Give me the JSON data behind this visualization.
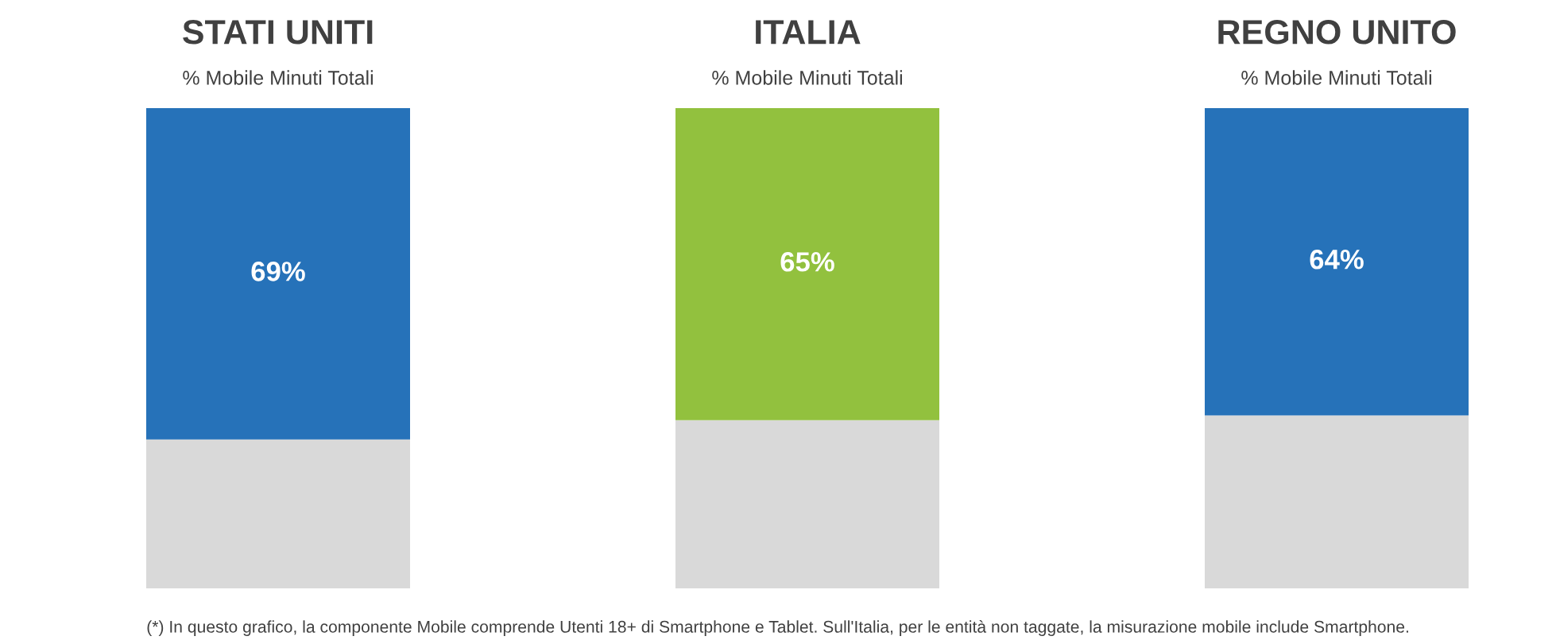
{
  "chart_data": [
    {
      "type": "bar",
      "title": "STATI UNITI",
      "subtitle": "% Mobile Minuti Totali",
      "categories": [
        null
      ],
      "stacked": true,
      "series": [
        {
          "color": "#d9d9d9",
          "values": [
            31
          ]
        },
        {
          "color": "#2672b9",
          "values": [
            69
          ],
          "value_labels": [
            "69%"
          ]
        }
      ],
      "annotations": [
        "(*) In questo grafico, la componente Mobile comprende Utenti 18+ di Smartphone e Tablet. Sull'Italia, per le entità non taggate, la misurazione mobile include Smartphone."
      ]
    },
    {
      "type": "bar",
      "title": "ITALIA",
      "subtitle": "% Mobile Minuti Totali",
      "categories": [
        null
      ],
      "stacked": true,
      "series": [
        {
          "color": "#d9d9d9",
          "values": [
            35
          ]
        },
        {
          "color": "#92c13e",
          "values": [
            65
          ],
          "value_labels": [
            "65%"
          ]
        }
      ]
    },
    {
      "type": "bar",
      "title": "REGNO UNITO",
      "subtitle": "% Mobile Minuti Totali",
      "categories": [
        null
      ],
      "stacked": true,
      "series": [
        {
          "color": "#d9d9d9",
          "values": [
            36
          ]
        },
        {
          "color": "#2672b9",
          "values": [
            64
          ],
          "value_labels": [
            "64%"
          ]
        }
      ]
    }
  ]
}
